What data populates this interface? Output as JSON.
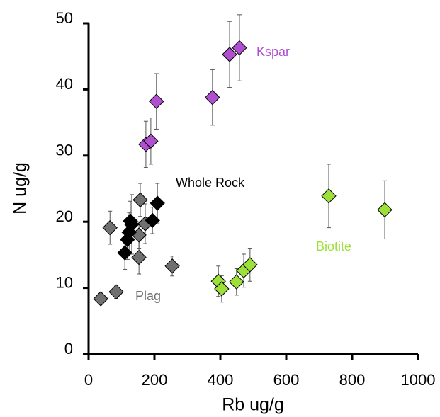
{
  "chart_data": {
    "type": "scatter",
    "xlabel": "Rb ug/g",
    "ylabel": "N ug/g",
    "xlim": [
      0,
      1000
    ],
    "xticks": [
      0,
      200,
      400,
      600,
      800,
      1000
    ],
    "ylim": [
      0,
      50
    ],
    "yticks": [
      0,
      10,
      20,
      30,
      40,
      50
    ],
    "series": [
      {
        "name": "Kspar",
        "color": "#b04fd0",
        "x": [
          174,
          189,
          206,
          376,
          428,
          458
        ],
        "values": [
          31.7,
          32.2,
          38.2,
          38.8,
          45.3,
          46.3
        ],
        "errors": [
          3.5,
          3.5,
          4.2,
          4.2,
          5,
          5
        ]
      },
      {
        "name": "Biotite",
        "color": "#9ee03a",
        "x": [
          729,
          899,
          394,
          404,
          449,
          471,
          490
        ],
        "values": [
          23.9,
          21.8,
          11.0,
          9.85,
          10.9,
          12.6,
          13.5
        ],
        "errors": [
          4.8,
          4.4,
          2.3,
          2,
          2,
          2.5,
          2.5
        ]
      },
      {
        "name": "Plag",
        "color": "#707070",
        "x": [
          37,
          84,
          65,
          157,
          153,
          153,
          172,
          254
        ],
        "values": [
          8.35,
          9.4,
          19.1,
          23.3,
          18.0,
          14.6,
          19.7,
          13.3
        ],
        "errors": [
          0.8,
          1,
          2.5,
          2.5,
          2,
          2.5,
          3,
          1.5
        ]
      },
      {
        "name": "Whole Rock",
        "color": "#000000",
        "x": [
          110,
          118,
          123,
          131,
          127,
          194,
          209
        ],
        "values": [
          15.3,
          17.3,
          18.4,
          19.6,
          20.1,
          20.2,
          22.8
        ],
        "errors": [
          2.5,
          3,
          3,
          4.5,
          3,
          2,
          3
        ]
      }
    ]
  }
}
